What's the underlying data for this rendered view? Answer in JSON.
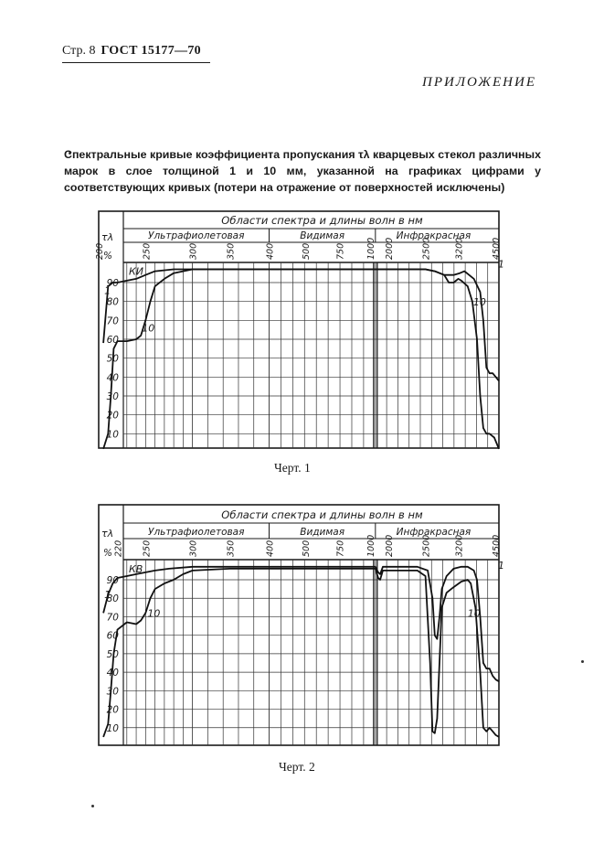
{
  "header": {
    "page": "Стр. 8",
    "standard": "ГОСТ 15177—70"
  },
  "appendix_title": "ПРИЛОЖЕНИЕ",
  "intro": "Спектральные кривые коэффициента пропускания τλ кварцевых стекол различных марок в слое толщиной 1 и 10 мм, указанной на графиках цифрами у соответствующих кривых (потери на отражение от поверхностей исключены)",
  "chart_data": [
    {
      "type": "line",
      "caption": "Черт. 1",
      "title": "Области спектра и длины волн в нм",
      "regions": [
        "Ультрафиолетовая",
        "Видимая",
        "Инфракрасная"
      ],
      "ylabel": "τλ",
      "yunit": "%",
      "ylim": [
        0,
        100
      ],
      "y_ticks": [
        10,
        20,
        30,
        40,
        50,
        60,
        70,
        80,
        90
      ],
      "x_ticks": [
        "200",
        "250",
        "300",
        "350",
        "400",
        "500",
        "750",
        "1000",
        "2000",
        "2500",
        "3200",
        "4500"
      ],
      "grid": true,
      "annotation": "КИ",
      "series": [
        {
          "name": "1",
          "points": [
            [
              205,
              58
            ],
            [
              210,
              88
            ],
            [
              215,
              90
            ],
            [
              220,
              90
            ],
            [
              230,
              91
            ],
            [
              240,
              92
            ],
            [
              250,
              94
            ],
            [
              260,
              96
            ],
            [
              280,
              97
            ],
            [
              300,
              97
            ],
            [
              350,
              97
            ],
            [
              400,
              97
            ],
            [
              500,
              97
            ],
            [
              750,
              97
            ],
            [
              1000,
              97
            ],
            [
              1500,
              97
            ],
            [
              2000,
              97
            ],
            [
              2500,
              97
            ],
            [
              2700,
              96
            ],
            [
              2900,
              94
            ],
            [
              3100,
              94
            ],
            [
              3250,
              95
            ],
            [
              3400,
              96
            ],
            [
              3700,
              92
            ],
            [
              3900,
              85
            ],
            [
              4000,
              70
            ],
            [
              4100,
              45
            ],
            [
              4200,
              42
            ],
            [
              4300,
              42
            ],
            [
              4400,
              40
            ],
            [
              4500,
              38
            ]
          ]
        },
        {
          "name": "10",
          "points": [
            [
              205,
              2
            ],
            [
              210,
              10
            ],
            [
              213,
              30
            ],
            [
              216,
              55
            ],
            [
              220,
              59
            ],
            [
              230,
              59
            ],
            [
              240,
              60
            ],
            [
              245,
              62
            ],
            [
              250,
              70
            ],
            [
              255,
              80
            ],
            [
              260,
              88
            ],
            [
              270,
              92
            ],
            [
              280,
              95
            ],
            [
              290,
              96
            ],
            [
              300,
              97
            ],
            [
              350,
              97
            ],
            [
              400,
              97
            ],
            [
              500,
              97
            ],
            [
              750,
              97
            ],
            [
              1000,
              97
            ],
            [
              1500,
              97
            ],
            [
              2000,
              97
            ],
            [
              2500,
              97
            ],
            [
              2700,
              96
            ],
            [
              2900,
              94
            ],
            [
              3000,
              90
            ],
            [
              3100,
              90
            ],
            [
              3200,
              92
            ],
            [
              3300,
              91
            ],
            [
              3500,
              88
            ],
            [
              3650,
              80
            ],
            [
              3800,
              60
            ],
            [
              3900,
              30
            ],
            [
              4000,
              13
            ],
            [
              4100,
              10
            ],
            [
              4200,
              10
            ],
            [
              4350,
              8
            ],
            [
              4500,
              2
            ]
          ]
        }
      ]
    },
    {
      "type": "line",
      "caption": "Черт. 2",
      "title": "Области спектра и длины волн в нм",
      "regions": [
        "Ультрафиолетовая",
        "Видимая",
        "Инфракрасная"
      ],
      "ylabel": "τλ",
      "yunit": "%",
      "ylim": [
        0,
        100
      ],
      "y_ticks": [
        10,
        20,
        30,
        40,
        50,
        60,
        70,
        80,
        90
      ],
      "x_ticks": [
        "220",
        "250",
        "300",
        "350",
        "400",
        "500",
        "750",
        "1000",
        "2000",
        "2500",
        "3200",
        "4500"
      ],
      "grid": true,
      "annotation": "КВ",
      "series": [
        {
          "name": "1",
          "points": [
            [
              205,
              72
            ],
            [
              210,
              82
            ],
            [
              215,
              88
            ],
            [
              220,
              91
            ],
            [
              230,
              92
            ],
            [
              240,
              93
            ],
            [
              250,
              94
            ],
            [
              260,
              95
            ],
            [
              275,
              96
            ],
            [
              300,
              97
            ],
            [
              350,
              97
            ],
            [
              400,
              97
            ],
            [
              500,
              97
            ],
            [
              750,
              97
            ],
            [
              1000,
              97
            ],
            [
              1300,
              94
            ],
            [
              1500,
              93
            ],
            [
              1800,
              97
            ],
            [
              2200,
              97
            ],
            [
              2400,
              97
            ],
            [
              2550,
              95
            ],
            [
              2650,
              80
            ],
            [
              2700,
              60
            ],
            [
              2750,
              58
            ],
            [
              2800,
              70
            ],
            [
              2850,
              85
            ],
            [
              2950,
              92
            ],
            [
              3100,
              96
            ],
            [
              3300,
              97
            ],
            [
              3500,
              97
            ],
            [
              3700,
              95
            ],
            [
              3800,
              90
            ],
            [
              3900,
              70
            ],
            [
              4000,
              45
            ],
            [
              4100,
              42
            ],
            [
              4200,
              42
            ],
            [
              4300,
              38
            ],
            [
              4400,
              36
            ],
            [
              4500,
              35
            ]
          ]
        },
        {
          "name": "10",
          "points": [
            [
              205,
              5
            ],
            [
              210,
              12
            ],
            [
              213,
              30
            ],
            [
              216,
              50
            ],
            [
              220,
              63
            ],
            [
              230,
              67
            ],
            [
              240,
              66
            ],
            [
              245,
              68
            ],
            [
              250,
              72
            ],
            [
              255,
              80
            ],
            [
              260,
              85
            ],
            [
              270,
              88
            ],
            [
              280,
              90
            ],
            [
              290,
              93
            ],
            [
              300,
              95
            ],
            [
              350,
              96
            ],
            [
              400,
              96
            ],
            [
              500,
              96
            ],
            [
              750,
              96
            ],
            [
              1000,
              96
            ],
            [
              1300,
              91
            ],
            [
              1500,
              90
            ],
            [
              1800,
              95
            ],
            [
              2200,
              95
            ],
            [
              2400,
              95
            ],
            [
              2500,
              92
            ],
            [
              2600,
              45
            ],
            [
              2650,
              8
            ],
            [
              2700,
              7
            ],
            [
              2750,
              15
            ],
            [
              2850,
              75
            ],
            [
              2950,
              83
            ],
            [
              3100,
              86
            ],
            [
              3300,
              89
            ],
            [
              3500,
              90
            ],
            [
              3600,
              88
            ],
            [
              3750,
              75
            ],
            [
              3900,
              40
            ],
            [
              4000,
              10
            ],
            [
              4100,
              8
            ],
            [
              4200,
              10
            ],
            [
              4300,
              8
            ],
            [
              4400,
              6
            ],
            [
              4500,
              5
            ]
          ]
        }
      ]
    }
  ]
}
